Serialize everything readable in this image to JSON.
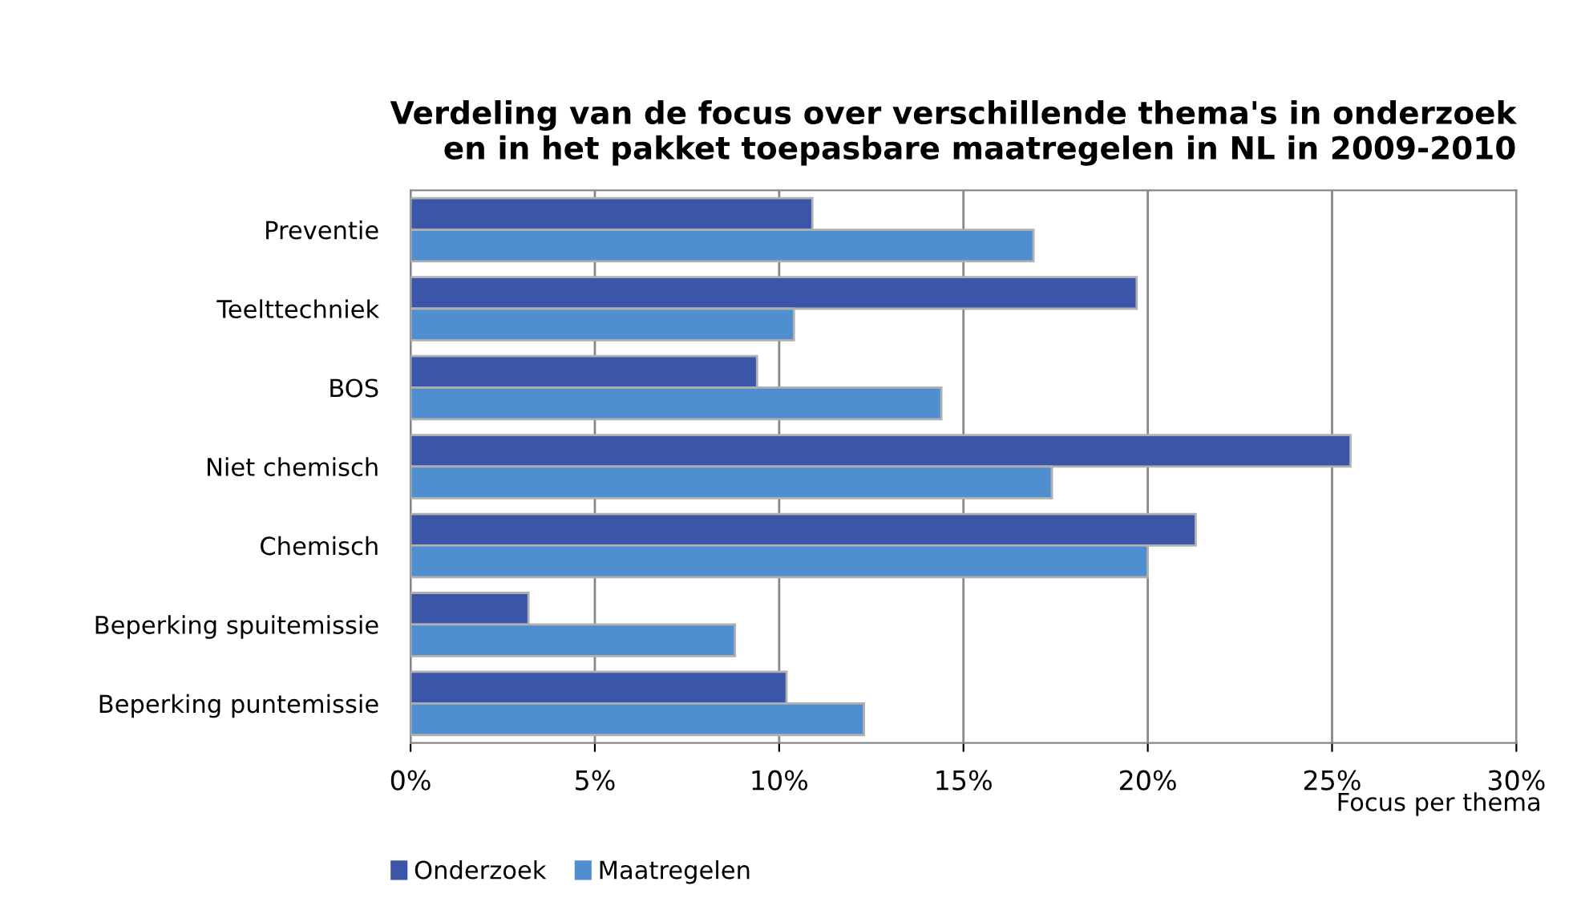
{
  "chart_data": {
    "type": "bar",
    "orientation": "horizontal",
    "title": "Verdeling van de focus over verschillende thema's in onderzoek\nen in het pakket toepasbare maatregelen in NL in 2009-2010",
    "xlabel": "Focus per thema",
    "categories": [
      "Preventie",
      "Teelttechniek",
      "BOS",
      "Niet chemisch",
      "Chemisch",
      "Beperking spuitemissie",
      "Beperking puntemissie"
    ],
    "series": [
      {
        "name": "Onderzoek",
        "color": "#3b55a8",
        "values": [
          10.9,
          19.7,
          9.4,
          25.5,
          21.3,
          3.2,
          10.2
        ]
      },
      {
        "name": "Maatregelen",
        "color": "#4f8fd0",
        "values": [
          16.9,
          10.4,
          14.4,
          17.4,
          20.0,
          8.8,
          12.3
        ]
      }
    ],
    "xlim": [
      0,
      30
    ],
    "xticks": [
      {
        "value": 0,
        "label": "0%"
      },
      {
        "value": 5,
        "label": "5%"
      },
      {
        "value": 10,
        "label": "10%"
      },
      {
        "value": 15,
        "label": "15%"
      },
      {
        "value": 20,
        "label": "20%"
      },
      {
        "value": 25,
        "label": "25%"
      },
      {
        "value": 30,
        "label": "30%"
      }
    ],
    "grid": "x",
    "legend": "bottom left"
  }
}
